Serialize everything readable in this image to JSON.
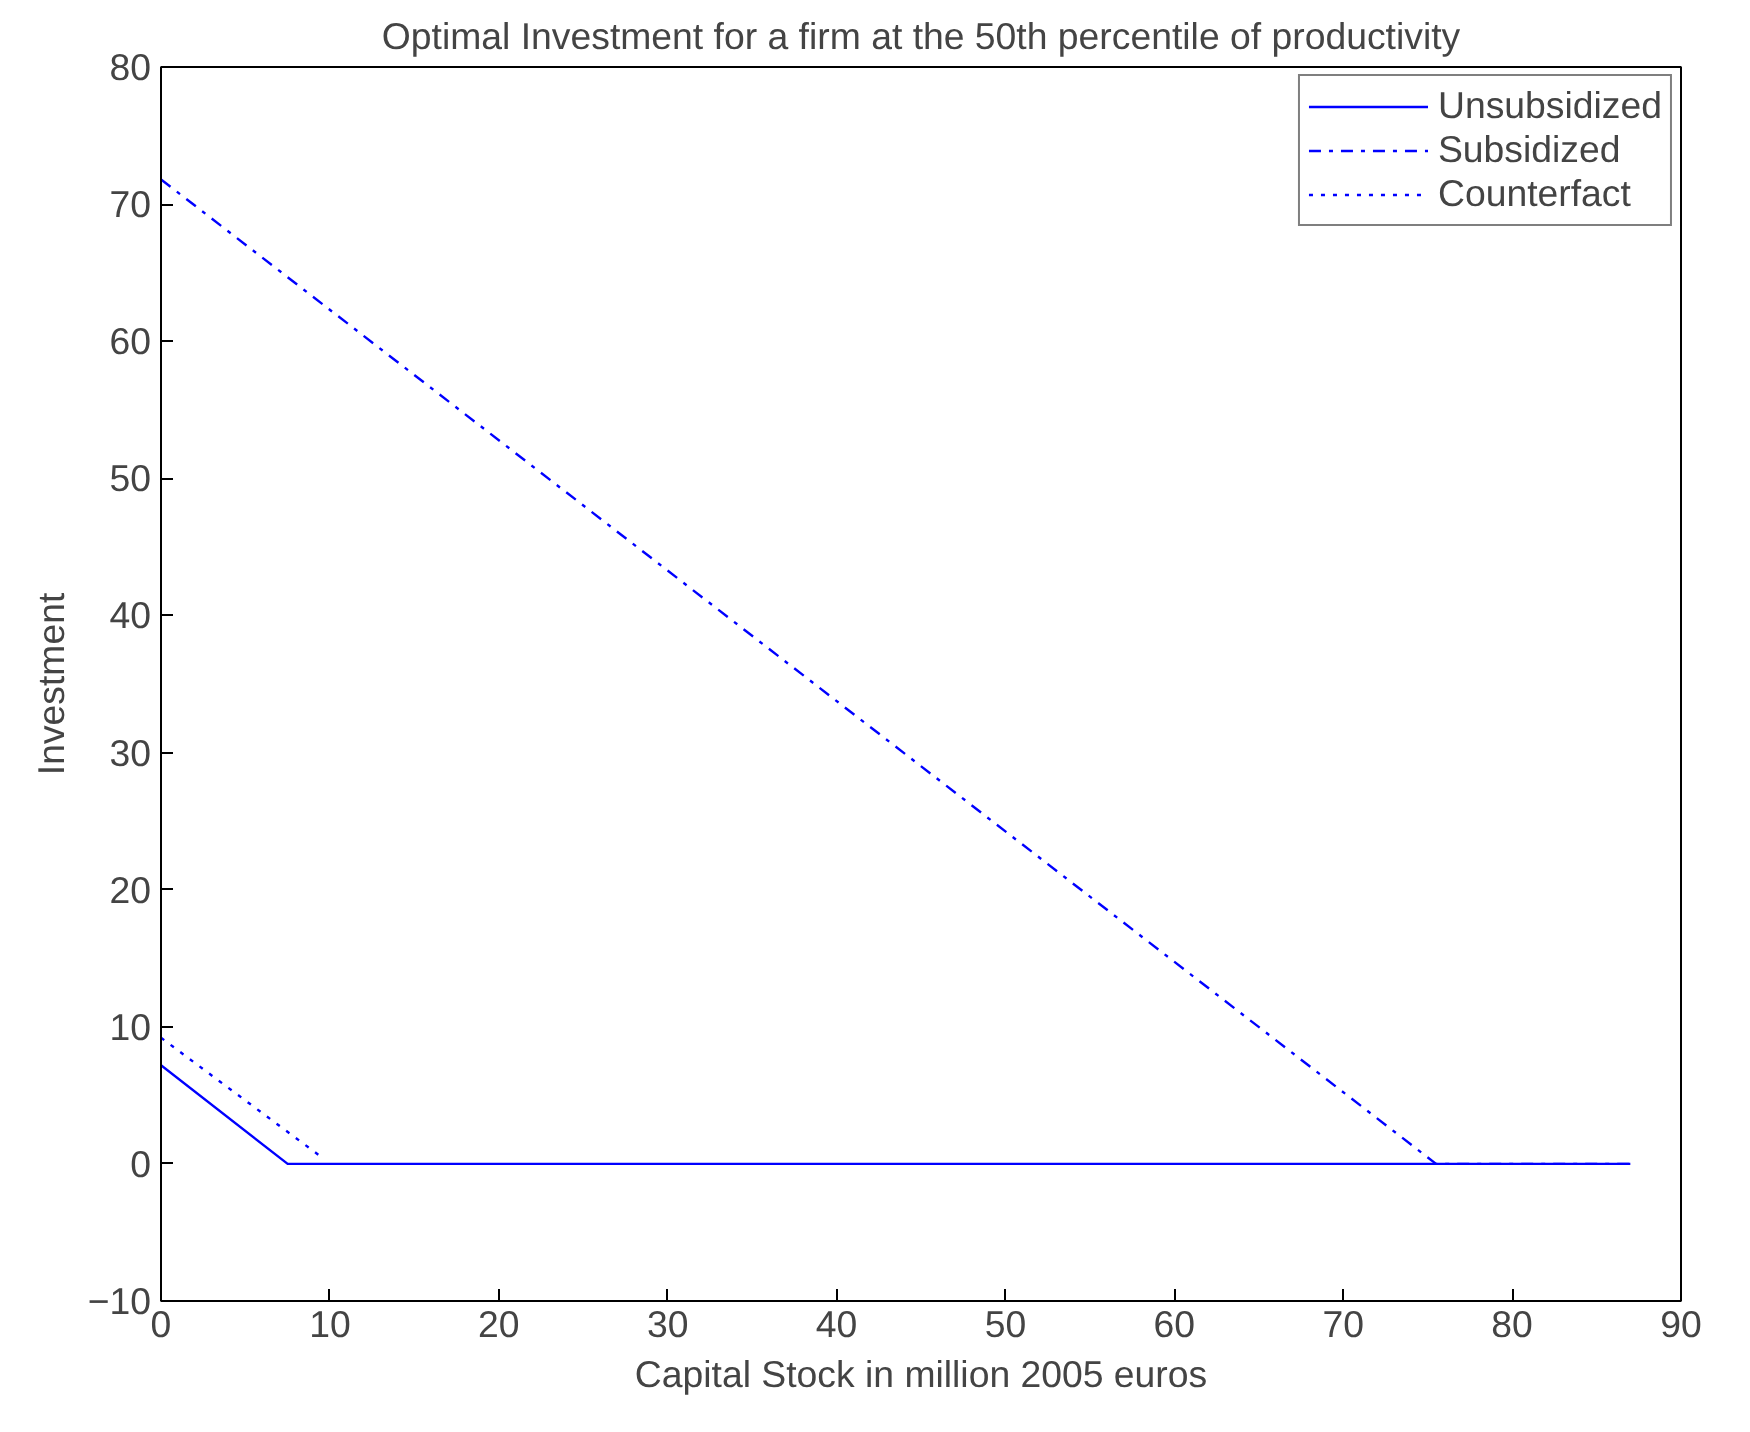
{
  "chart_data": {
    "type": "line",
    "title": "Optimal Investment for a firm at the 50th percentile of productivity",
    "xlabel": "Capital Stock in million 2005 euros",
    "ylabel": "Investment",
    "series": [
      {
        "name": "Unsubsidized",
        "color": "#0000ff",
        "line_style": "solid",
        "x": [
          0,
          7.5,
          87
        ],
        "values": [
          7.2,
          0,
          0
        ]
      },
      {
        "name": "Subsidized",
        "color": "#0000ff",
        "line_style": "dashdot",
        "x": [
          0,
          75.5,
          87
        ],
        "values": [
          71.8,
          0,
          0
        ]
      },
      {
        "name": "Counterfact",
        "color": "#0000ff",
        "line_style": "dotted",
        "x": [
          0,
          9.5
        ],
        "values": [
          9.2,
          0.5
        ]
      }
    ],
    "xlim": [
      0,
      90
    ],
    "ylim": [
      -10,
      80
    ],
    "xticks": [
      0,
      10,
      20,
      30,
      40,
      50,
      60,
      70,
      80,
      90
    ],
    "yticks": [
      {
        "value": -10,
        "label": "−10"
      },
      0,
      10,
      20,
      30,
      40,
      50,
      60,
      70,
      80
    ],
    "grid": false,
    "legend": "top right",
    "marker": "none"
  }
}
